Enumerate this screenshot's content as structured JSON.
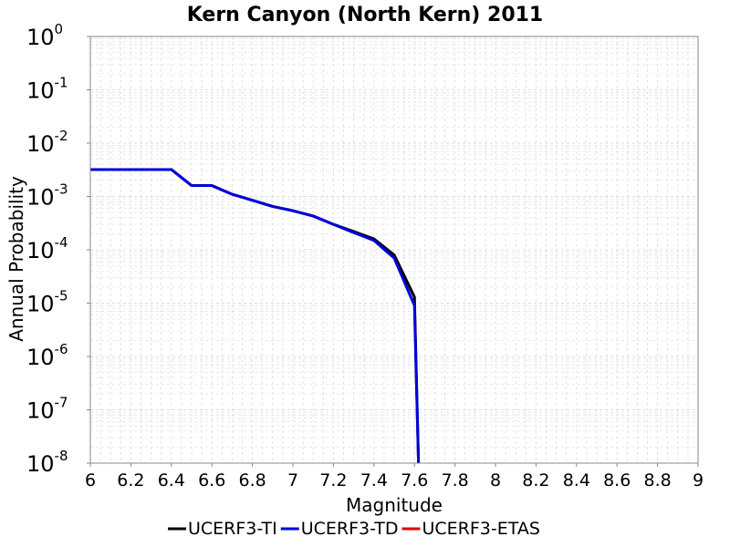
{
  "chart_data": {
    "type": "line",
    "title": "Kern Canyon (North Kern) 2011",
    "xlabel": "Magnitude",
    "ylabel": "Annual Probability",
    "xlim": [
      6,
      9
    ],
    "x_ticks": [
      6,
      6.2,
      6.4,
      6.6,
      6.8,
      7,
      7.2,
      7.4,
      7.6,
      7.8,
      8,
      8.2,
      8.4,
      8.6,
      8.8,
      9
    ],
    "x_tick_labels": [
      "6",
      "6.2",
      "6.4",
      "6.6",
      "6.8",
      "7",
      "7.2",
      "7.4",
      "7.6",
      "7.8",
      "8",
      "8.2",
      "8.4",
      "8.6",
      "8.8",
      "9"
    ],
    "y_scale": "log",
    "ylim": [
      1e-08,
      1
    ],
    "y_tick_base": "10",
    "y_tick_exponents": [
      "-8",
      "-7",
      "-6",
      "-5",
      "-4",
      "-3",
      "-2",
      "-1",
      "0"
    ],
    "grid": true,
    "legend_position": "bottom-center",
    "series": [
      {
        "name": "UCERF3-TI",
        "color": "#000000",
        "x": [
          6.0,
          6.1,
          6.2,
          6.3,
          6.4,
          6.5,
          6.6,
          6.7,
          6.8,
          6.9,
          7.0,
          7.1,
          7.2,
          7.3,
          7.4,
          7.5,
          7.6,
          7.62
        ],
        "y": [
          0.0032,
          0.0032,
          0.0032,
          0.0032,
          0.0032,
          0.0016,
          0.0016,
          0.0011,
          0.00085,
          0.00065,
          0.00054,
          0.00043,
          0.0003,
          0.00022,
          0.00016,
          8e-05,
          1.3e-05,
          1e-08
        ]
      },
      {
        "name": "UCERF3-TD",
        "color": "#0000dd",
        "x": [
          6.0,
          6.1,
          6.2,
          6.3,
          6.4,
          6.5,
          6.6,
          6.7,
          6.8,
          6.9,
          7.0,
          7.1,
          7.2,
          7.3,
          7.4,
          7.5,
          7.6,
          7.62
        ],
        "y": [
          0.0032,
          0.0032,
          0.0032,
          0.0032,
          0.0032,
          0.0016,
          0.0016,
          0.0011,
          0.00085,
          0.00065,
          0.00054,
          0.00043,
          0.0003,
          0.00021,
          0.00015,
          7e-05,
          9e-06,
          1e-08
        ]
      },
      {
        "name": "UCERF3-ETAS",
        "color": "#dd0000",
        "x": [],
        "y": []
      }
    ]
  }
}
